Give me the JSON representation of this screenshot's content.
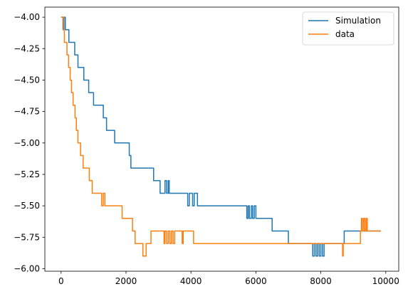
{
  "chart_data": {
    "type": "line",
    "title": "",
    "xlabel": "",
    "ylabel": "",
    "xlim": [
      -500,
      10400
    ],
    "ylim": [
      -6.02,
      -3.92
    ],
    "x_ticks": [
      0,
      2000,
      4000,
      6000,
      8000,
      10000
    ],
    "x_tick_labels": [
      "0",
      "2000",
      "4000",
      "6000",
      "8000",
      "10000"
    ],
    "y_ticks": [
      -6.0,
      -5.75,
      -5.5,
      -5.25,
      -5.0,
      -4.75,
      -4.5,
      -4.25,
      -4.0
    ],
    "y_tick_labels": [
      "−6.00",
      "−5.75",
      "−5.50",
      "−5.25",
      "−5.00",
      "−4.75",
      "−4.50",
      "−4.25",
      "−4.00"
    ],
    "grid": false,
    "legend_position": "top-right",
    "series": [
      {
        "name": "Simulation",
        "color": "#1f77b4",
        "step": true,
        "points": [
          [
            0,
            -4.0
          ],
          [
            60,
            -4.1
          ],
          [
            90,
            -4.0
          ],
          [
            130,
            -4.1
          ],
          [
            240,
            -4.2
          ],
          [
            350,
            -4.2
          ],
          [
            420,
            -4.3
          ],
          [
            470,
            -4.3
          ],
          [
            520,
            -4.4
          ],
          [
            640,
            -4.4
          ],
          [
            700,
            -4.5
          ],
          [
            800,
            -4.5
          ],
          [
            850,
            -4.6
          ],
          [
            950,
            -4.6
          ],
          [
            1000,
            -4.7
          ],
          [
            1300,
            -4.8
          ],
          [
            1400,
            -4.9
          ],
          [
            1600,
            -4.9
          ],
          [
            1650,
            -5.0
          ],
          [
            1950,
            -5.0
          ],
          [
            2100,
            -5.1
          ],
          [
            2150,
            -5.2
          ],
          [
            2700,
            -5.2
          ],
          [
            2850,
            -5.3
          ],
          [
            3000,
            -5.3
          ],
          [
            3050,
            -5.4
          ],
          [
            3150,
            -5.4
          ],
          [
            3200,
            -5.3
          ],
          [
            3250,
            -5.4
          ],
          [
            3300,
            -5.3
          ],
          [
            3330,
            -5.4
          ],
          [
            3800,
            -5.4
          ],
          [
            3900,
            -5.5
          ],
          [
            3950,
            -5.4
          ],
          [
            4050,
            -5.5
          ],
          [
            4100,
            -5.4
          ],
          [
            4200,
            -5.5
          ],
          [
            5700,
            -5.5
          ],
          [
            5720,
            -5.6
          ],
          [
            5760,
            -5.5
          ],
          [
            5800,
            -5.6
          ],
          [
            5860,
            -5.5
          ],
          [
            5900,
            -5.6
          ],
          [
            5950,
            -5.5
          ],
          [
            6000,
            -5.6
          ],
          [
            6450,
            -5.6
          ],
          [
            6500,
            -5.7
          ],
          [
            6950,
            -5.7
          ],
          [
            7000,
            -5.8
          ],
          [
            7700,
            -5.8
          ],
          [
            7750,
            -5.9
          ],
          [
            7800,
            -5.8
          ],
          [
            7850,
            -5.9
          ],
          [
            7900,
            -5.8
          ],
          [
            7950,
            -5.9
          ],
          [
            8000,
            -5.8
          ],
          [
            8050,
            -5.9
          ],
          [
            8100,
            -5.8
          ],
          [
            8700,
            -5.8
          ],
          [
            8720,
            -5.7
          ],
          [
            9850,
            -5.7
          ]
        ]
      },
      {
        "name": "data",
        "color": "#ff7f0e",
        "step": true,
        "points": [
          [
            0,
            -4.0
          ],
          [
            80,
            -4.1
          ],
          [
            100,
            -4.2
          ],
          [
            180,
            -4.3
          ],
          [
            230,
            -4.4
          ],
          [
            280,
            -4.5
          ],
          [
            320,
            -4.6
          ],
          [
            370,
            -4.7
          ],
          [
            430,
            -4.8
          ],
          [
            470,
            -4.9
          ],
          [
            520,
            -5.0
          ],
          [
            600,
            -5.1
          ],
          [
            680,
            -5.2
          ],
          [
            870,
            -5.3
          ],
          [
            960,
            -5.4
          ],
          [
            1200,
            -5.4
          ],
          [
            1250,
            -5.5
          ],
          [
            1300,
            -5.4
          ],
          [
            1350,
            -5.5
          ],
          [
            1850,
            -5.5
          ],
          [
            1880,
            -5.6
          ],
          [
            2150,
            -5.6
          ],
          [
            2200,
            -5.7
          ],
          [
            2280,
            -5.8
          ],
          [
            2500,
            -5.8
          ],
          [
            2520,
            -5.9
          ],
          [
            2620,
            -5.8
          ],
          [
            2750,
            -5.8
          ],
          [
            2770,
            -5.7
          ],
          [
            3150,
            -5.7
          ],
          [
            3170,
            -5.8
          ],
          [
            3200,
            -5.7
          ],
          [
            3250,
            -5.8
          ],
          [
            3300,
            -5.7
          ],
          [
            3350,
            -5.8
          ],
          [
            3400,
            -5.7
          ],
          [
            3450,
            -5.8
          ],
          [
            3500,
            -5.7
          ],
          [
            3700,
            -5.7
          ],
          [
            3730,
            -5.8
          ],
          [
            3760,
            -5.7
          ],
          [
            4050,
            -5.7
          ],
          [
            4080,
            -5.8
          ],
          [
            8650,
            -5.8
          ],
          [
            8670,
            -5.9
          ],
          [
            8690,
            -5.8
          ],
          [
            9200,
            -5.8
          ],
          [
            9220,
            -5.7
          ],
          [
            9250,
            -5.6
          ],
          [
            9280,
            -5.7
          ],
          [
            9320,
            -5.6
          ],
          [
            9360,
            -5.7
          ],
          [
            9400,
            -5.6
          ],
          [
            9430,
            -5.7
          ],
          [
            9850,
            -5.7
          ]
        ]
      }
    ]
  }
}
